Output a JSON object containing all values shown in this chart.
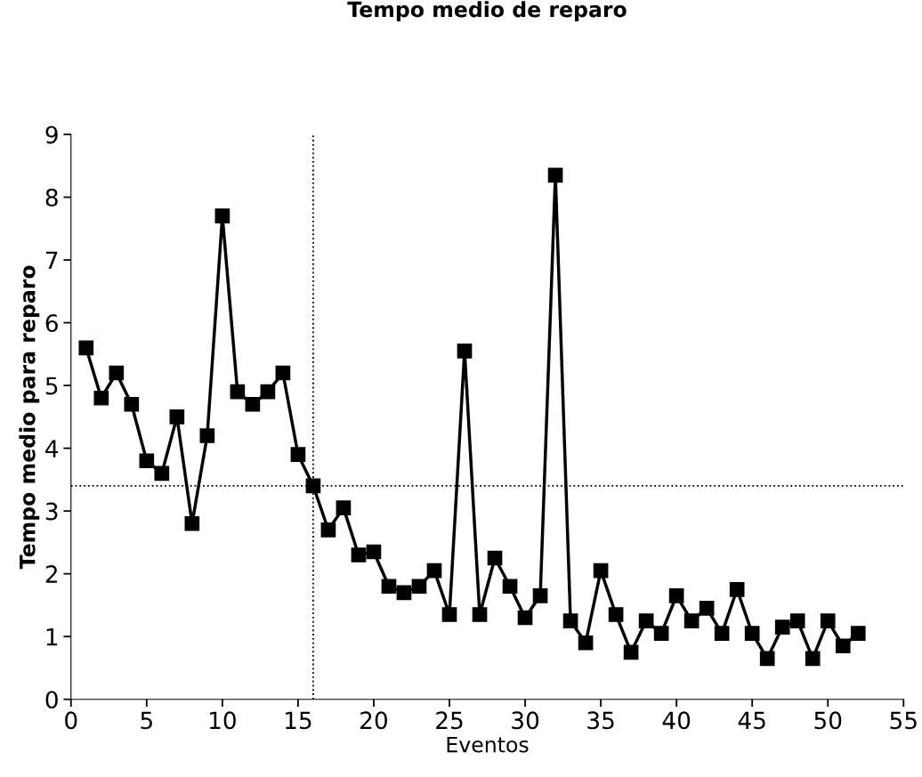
{
  "chart_data": {
    "type": "line",
    "title": "Tempo medio de reparo",
    "xlabel": "Eventos",
    "ylabel": "Tempo medio para reparo",
    "x": [
      1,
      2,
      3,
      4,
      5,
      6,
      7,
      8,
      9,
      10,
      11,
      12,
      13,
      14,
      15,
      16,
      17,
      18,
      19,
      20,
      21,
      22,
      23,
      24,
      25,
      26,
      27,
      28,
      29,
      30,
      31,
      32,
      33,
      34,
      35,
      36,
      37,
      38,
      39,
      40,
      41,
      42,
      43,
      44,
      45,
      46,
      47,
      48,
      49,
      50,
      51,
      52
    ],
    "series": [
      {
        "color": "#000000",
        "values": [
          5.6,
          4.8,
          5.2,
          4.7,
          3.8,
          3.6,
          4.5,
          2.8,
          4.2,
          7.7,
          4.9,
          4.7,
          4.9,
          5.2,
          3.9,
          3.4,
          2.7,
          3.05,
          2.3,
          2.35,
          1.8,
          1.7,
          1.8,
          2.05,
          1.35,
          5.55,
          1.35,
          2.25,
          1.8,
          1.3,
          1.65,
          8.35,
          1.25,
          0.9,
          2.05,
          1.35,
          0.75,
          1.25,
          1.05,
          1.65,
          1.25,
          1.45,
          1.05,
          1.75,
          1.05,
          0.65,
          1.15,
          1.25,
          0.65,
          1.25,
          0.85,
          1.05
        ]
      }
    ],
    "xlim": [
      0,
      55
    ],
    "xticks": [
      0,
      5,
      10,
      15,
      20,
      25,
      30,
      35,
      40,
      45,
      50,
      55
    ],
    "ylim": [
      0,
      9
    ],
    "yticks": [
      0,
      1,
      2,
      3,
      4,
      5,
      6,
      7,
      8,
      9
    ],
    "ref_lines": [
      {
        "axis": "y",
        "value": 3.4,
        "label": null,
        "color": "#000000",
        "line_style": "dotted"
      },
      {
        "axis": "x",
        "value": 16,
        "label": null,
        "color": "#000000",
        "line_style": "dotted"
      }
    ],
    "marker": "square",
    "line_style": "solid",
    "grid": false,
    "legend": false
  }
}
